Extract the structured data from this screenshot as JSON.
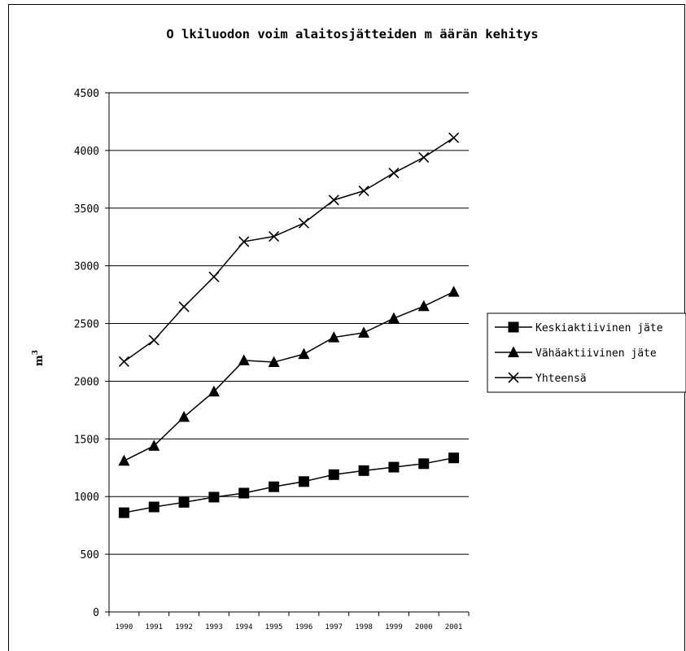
{
  "chart_data": {
    "type": "line",
    "title": "O lkiluodon voim alaitosjätteiden m äärän kehitys",
    "ylabel": "m",
    "ylabel_sup": "3",
    "xlabel": "",
    "x": [
      "1990",
      "1991",
      "1992",
      "1993",
      "1994",
      "1995",
      "1996",
      "1997",
      "1998",
      "1999",
      "2000",
      "2001"
    ],
    "ylim": [
      0,
      4500
    ],
    "yticks": [
      0,
      500,
      1000,
      1500,
      2000,
      2500,
      3000,
      3500,
      4000,
      4500
    ],
    "grid": true,
    "legend_position": "right",
    "series": [
      {
        "name": "Keskiaktiivinen jäte",
        "marker": "square",
        "values": [
          860,
          910,
          950,
          995,
          1030,
          1085,
          1130,
          1190,
          1225,
          1255,
          1285,
          1335
        ]
      },
      {
        "name": "Vähäaktiivinen jäte",
        "marker": "triangle",
        "values": [
          1310,
          1440,
          1690,
          1910,
          2180,
          2165,
          2235,
          2380,
          2420,
          2545,
          2650,
          2775
        ]
      },
      {
        "name": "Yhteensä",
        "marker": "x",
        "values": [
          2170,
          2355,
          2645,
          2905,
          3210,
          3255,
          3370,
          3570,
          3650,
          3805,
          3940,
          4110
        ]
      }
    ]
  }
}
